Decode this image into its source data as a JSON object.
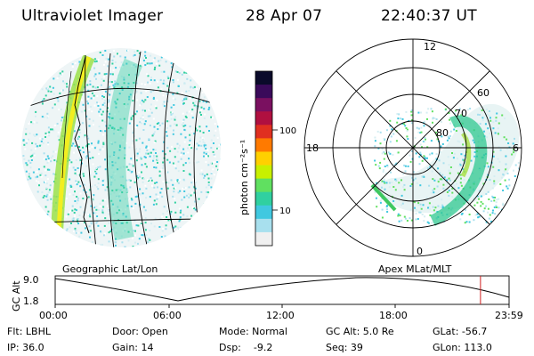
{
  "header": {
    "title": "Ultraviolet Imager",
    "date": "28 Apr 07",
    "time": "22:40:37 UT"
  },
  "colorbar": {
    "label": "photon cm⁻²s⁻¹",
    "ticks": [
      "100",
      "10"
    ],
    "scale": "log",
    "colors": [
      "#0a0a2a",
      "#3a0a5a",
      "#7a1060",
      "#b01040",
      "#e03020",
      "#ff7a00",
      "#ffd000",
      "#c8f000",
      "#60e060",
      "#30d0a0",
      "#40c8e0",
      "#a8e0ee",
      "#f0f0f0"
    ]
  },
  "polar_plot": {
    "mlt_labels": {
      "top": "12",
      "bottom": "0",
      "left": "18",
      "right": "6"
    },
    "mlat_labels": [
      "60",
      "70",
      "80"
    ]
  },
  "geo_panel": {
    "label": "Geographic Lat/Lon"
  },
  "apex_panel": {
    "label": "Apex MLat/MLT"
  },
  "timeline": {
    "ylabel": "GC Alt",
    "ytick_top": "9.0",
    "ytick_bottom": "1.8",
    "xticks": [
      "00:00",
      "06:00",
      "12:00",
      "18:00",
      "23:59"
    ],
    "current_time_fraction": 0.937
  },
  "info": {
    "flt": "Flt: LBHL",
    "ip": "IP: 36.0",
    "door": "Door: Open",
    "gain": "Gain: 14",
    "mode": "Mode: Normal",
    "dsp": "Dsp:    -9.2",
    "gcalt": "GC Alt: 5.0 Re",
    "seq": "Seq: 39",
    "glat": "GLat: -56.7",
    "glon": "GLon: 113.0"
  }
}
